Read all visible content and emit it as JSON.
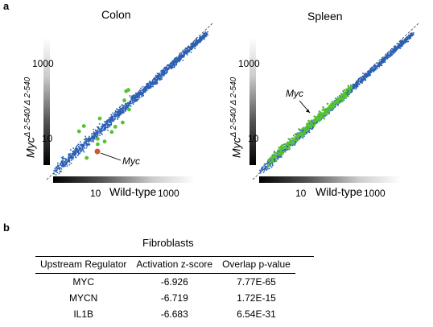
{
  "panels": {
    "a_label": "a",
    "b_label": "b"
  },
  "scatter": {
    "colon": {
      "title": "Colon",
      "y_ticks": [
        "1000",
        "10"
      ],
      "x_ticks": [
        "10",
        "1000"
      ],
      "xlabel": "Wild-type",
      "ylabel_main": "Myc",
      "ylabel_sup": "Δ 2-540/ Δ 2-540",
      "annotation": "Myc"
    },
    "spleen": {
      "title": "Spleen",
      "y_ticks": [
        "1000",
        "10"
      ],
      "x_ticks": [
        "10",
        "1000"
      ],
      "xlabel": "Wild-type",
      "ylabel_main": "Myc",
      "ylabel_sup": "Δ 2-540/ Δ 2-540",
      "annotation": "Myc"
    },
    "colors": {
      "points": "#2a5fb4",
      "highlight": "#55c232",
      "myc_point": "#d4543a"
    }
  },
  "table": {
    "title": "Fibroblasts",
    "headers": [
      "Upstream Regulator",
      "Activation z-score",
      "Overlap p-value"
    ],
    "rows": [
      [
        "MYC",
        "-6.926",
        "7.77E-65"
      ],
      [
        "MYCN",
        "-6.719",
        "1.72E-15"
      ],
      [
        "IL1B",
        "-6.683",
        "6.54E-31"
      ]
    ]
  }
}
